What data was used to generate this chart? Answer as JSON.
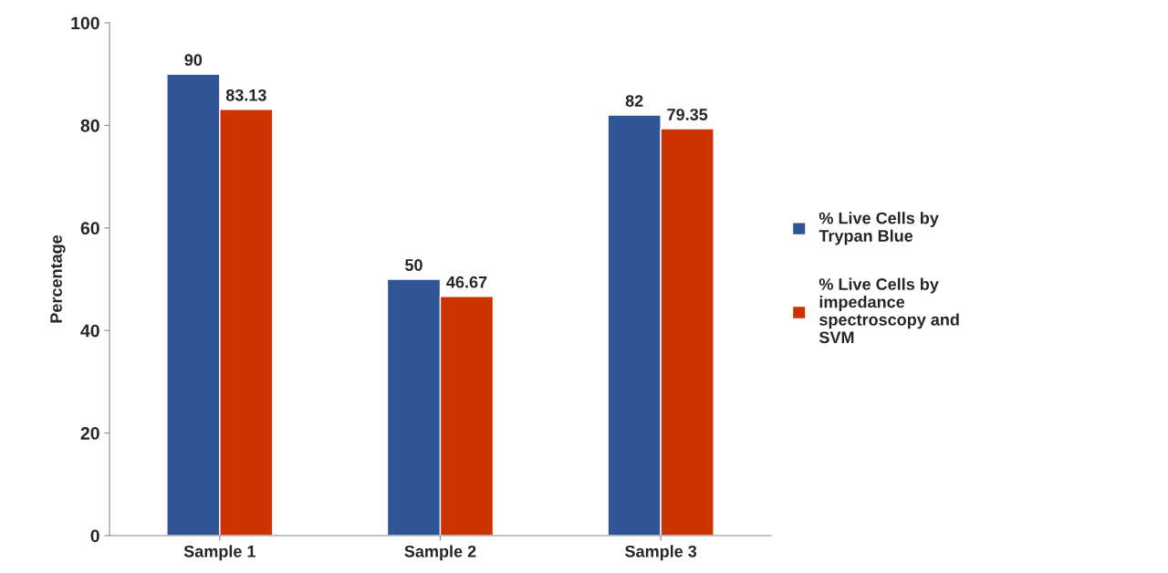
{
  "chart_data": {
    "type": "bar",
    "ylabel": "Percentage",
    "categories": [
      "Sample 1",
      "Sample 2",
      "Sample 3"
    ],
    "series": [
      {
        "name": "% Live Cells by Trypan Blue",
        "color": "#2f5597",
        "values": [
          90,
          50,
          82
        ]
      },
      {
        "name": "% Live Cells by impedance spectroscopy and SVM",
        "color": "#cc3300",
        "values": [
          83.13,
          46.67,
          79.35
        ]
      }
    ],
    "ylim": [
      0,
      100
    ],
    "yticks": [
      0,
      20,
      40,
      60,
      80,
      100
    ],
    "grid": false,
    "legend": "right",
    "data_labels": true
  }
}
